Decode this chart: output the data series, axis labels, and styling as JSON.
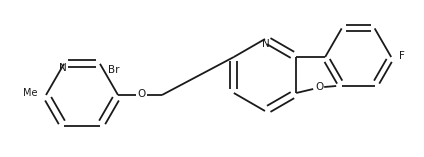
{
  "bg_color": "#ffffff",
  "line_color": "#1a1a1a",
  "lw": 1.3,
  "fs": 7.5,
  "fig_w": 4.24,
  "fig_h": 1.57,
  "dpi": 100,
  "xlim": [
    0,
    424
  ],
  "ylim": [
    0,
    157
  ]
}
